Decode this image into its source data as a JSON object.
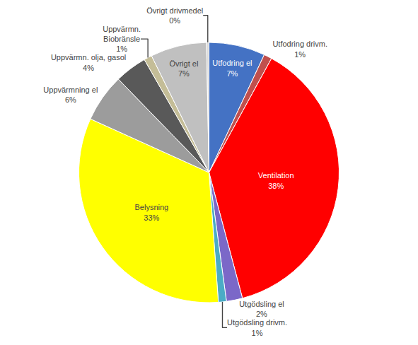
{
  "chart_data": {
    "type": "pie",
    "categories": [
      "Utfodring el",
      "Utfodring drivm.",
      "Ventilation",
      "Utgödsling el",
      "Utgödsling drivm.",
      "Belysning",
      "Uppvärmning el",
      "Uppvärmn. olja, gasol",
      "Uppvärmn.\nBiobränsle",
      "Övrigt el",
      "Övrigt drivmedel"
    ],
    "values": [
      7,
      1,
      38,
      2,
      1,
      33,
      6,
      4,
      1,
      7,
      0.3
    ],
    "value_labels": [
      "7%",
      "1%",
      "38%",
      "2%",
      "1%",
      "33%",
      "6%",
      "4%",
      "1%",
      "7%",
      "0%"
    ],
    "colors": [
      "#4472C4",
      "#C0504D",
      "#FF0000",
      "#7B68C8",
      "#4BACC6",
      "#FFFF00",
      "#9C9C9C",
      "#595959",
      "#C4BD97",
      "#C0C0C0",
      "#D9D9D9"
    ],
    "data_labels": true
  }
}
